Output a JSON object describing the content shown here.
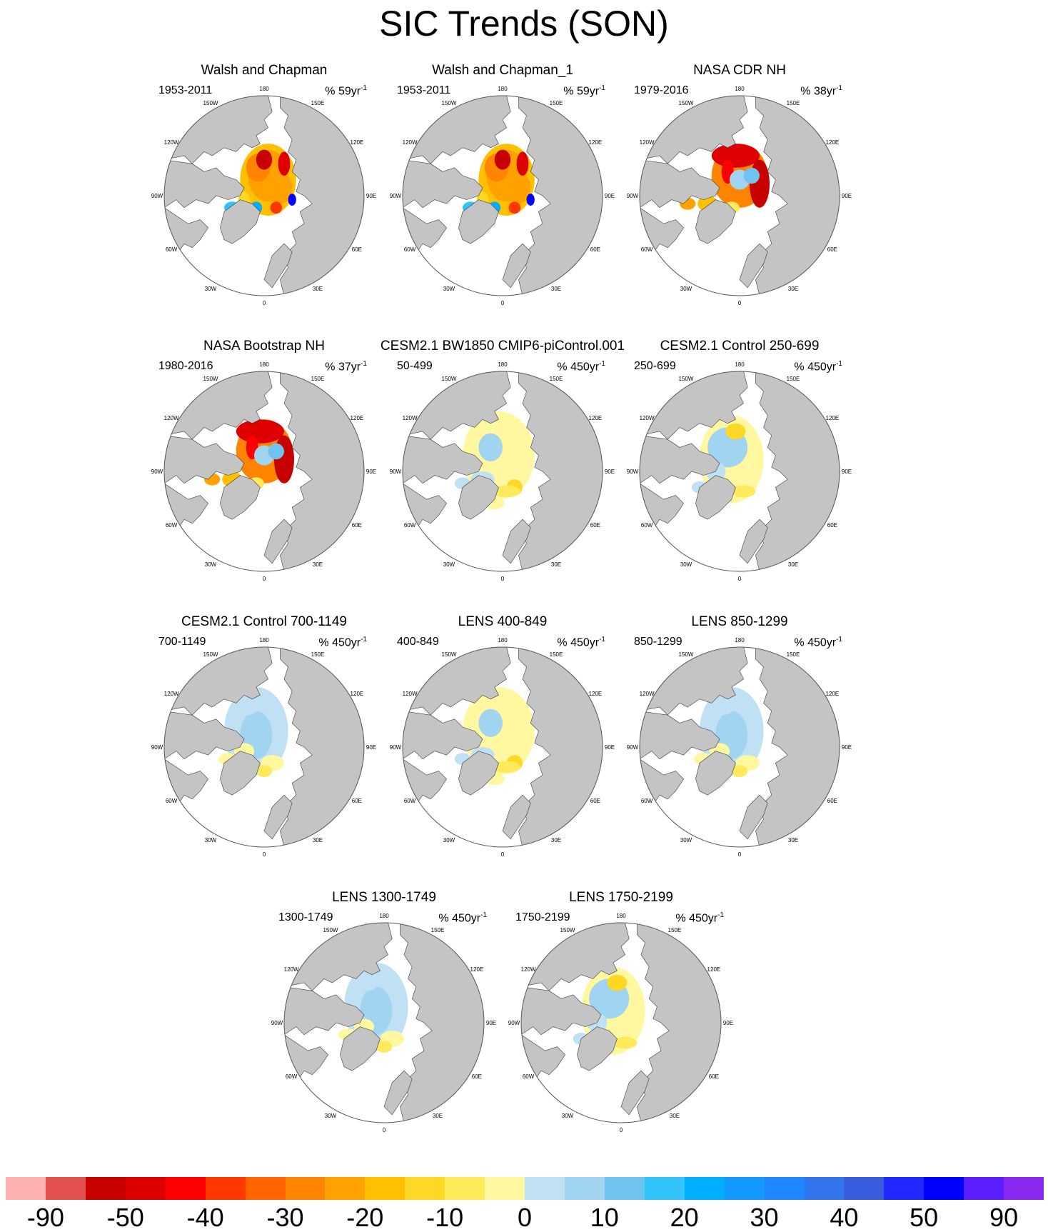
{
  "title": "SIC Trends (SON)",
  "panels": [
    {
      "title": "Walsh and Chapman",
      "period": "1953-2011",
      "scale_prefix": "% 59yr",
      "scale_exp": "-1",
      "pattern": "obs_wc"
    },
    {
      "title": "Walsh and Chapman_1",
      "period": "1953-2011",
      "scale_prefix": "% 59yr",
      "scale_exp": "-1",
      "pattern": "obs_wc"
    },
    {
      "title": "NASA CDR NH",
      "period": "1979-2016",
      "scale_prefix": "% 38yr",
      "scale_exp": "-1",
      "pattern": "obs_sat"
    },
    {
      "title": "NASA Bootstrap NH",
      "period": "1980-2016",
      "scale_prefix": "% 37yr",
      "scale_exp": "-1",
      "pattern": "obs_sat"
    },
    {
      "title": "CESM2.1 BW1850 CMIP6-piControl.001",
      "period": "50-499",
      "scale_prefix": "% 450yr",
      "scale_exp": "-1",
      "pattern": "model_a"
    },
    {
      "title": "CESM2.1 Control 250-699",
      "period": "250-699",
      "scale_prefix": "% 450yr",
      "scale_exp": "-1",
      "pattern": "model_b"
    },
    {
      "title": "CESM2.1 Control 700-1149",
      "period": "700-1149",
      "scale_prefix": "% 450yr",
      "scale_exp": "-1",
      "pattern": "model_c"
    },
    {
      "title": "LENS 400-849",
      "period": "400-849",
      "scale_prefix": "% 450yr",
      "scale_exp": "-1",
      "pattern": "model_a"
    },
    {
      "title": "LENS 850-1299",
      "period": "850-1299",
      "scale_prefix": "% 450yr",
      "scale_exp": "-1",
      "pattern": "model_c"
    },
    {
      "title": "LENS 1300-1749",
      "period": "1300-1749",
      "scale_prefix": "% 450yr",
      "scale_exp": "-1",
      "pattern": "model_c"
    },
    {
      "title": "LENS 1750-2199",
      "period": "1750-2199",
      "scale_prefix": "% 450yr",
      "scale_exp": "-1",
      "pattern": "model_b"
    }
  ],
  "longitude_labels": [
    "180",
    "150E",
    "120E",
    "90E",
    "60E",
    "30E",
    "0",
    "30W",
    "60W",
    "90W",
    "120W",
    "150W"
  ],
  "colorbar": {
    "colors": [
      "#ffb1b1",
      "#e55050",
      "#c70000",
      "#de0000",
      "#ff0000",
      "#ff3800",
      "#ff6400",
      "#ff8400",
      "#ffa200",
      "#ffc000",
      "#ffd825",
      "#ffea5c",
      "#fff8a0",
      "#c0e0f4",
      "#a0d4f0",
      "#70c2f0",
      "#30c4fb",
      "#00b0ff",
      "#1298ff",
      "#2088ff",
      "#3074ee",
      "#3c5ce0",
      "#1e28ff",
      "#0000ff",
      "#5a1eff",
      "#8a28f0"
    ],
    "labels": [
      "-90",
      "-50",
      "-40",
      "-30",
      "-20",
      "-10",
      "0",
      "10",
      "20",
      "30",
      "40",
      "50",
      "90"
    ]
  },
  "colors": {
    "land": "#c4c4c4",
    "ocean": "#ffffff",
    "coast": "#3a3a3a"
  }
}
